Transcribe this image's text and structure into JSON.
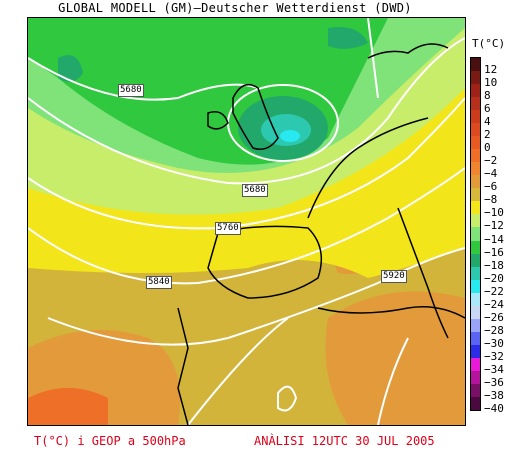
{
  "header": {
    "title": "GLOBAL MODELL (GM)—Deutscher Wetterdienst (DWD)"
  },
  "legend": {
    "title": "T(°C)",
    "levels": [
      {
        "label": "12",
        "color": "#4a0f0f"
      },
      {
        "label": "10",
        "color": "#7a1a14"
      },
      {
        "label": "8",
        "color": "#9e2218"
      },
      {
        "label": "6",
        "color": "#b7301b"
      },
      {
        "label": "4",
        "color": "#cc3b1c"
      },
      {
        "label": "2",
        "color": "#dd4a1f"
      },
      {
        "label": "0",
        "color": "#e85a22"
      },
      {
        "label": "−2",
        "color": "#ee6f27"
      },
      {
        "label": "−4",
        "color": "#f08530"
      },
      {
        "label": "−6",
        "color": "#e39a3a"
      },
      {
        "label": "−8",
        "color": "#d8b83a"
      },
      {
        "label": "−10",
        "color": "#f2e51a"
      },
      {
        "label": "−12",
        "color": "#c8ed6a"
      },
      {
        "label": "−14",
        "color": "#7fe37a"
      },
      {
        "label": "−16",
        "color": "#2fc83f"
      },
      {
        "label": "−18",
        "color": "#22a86a"
      },
      {
        "label": "−20",
        "color": "#2cc8b0"
      },
      {
        "label": "−22",
        "color": "#28e8f0"
      },
      {
        "label": "−24",
        "color": "#a8e8f8"
      },
      {
        "label": "−26",
        "color": "#c8d8f4"
      },
      {
        "label": "−28",
        "color": "#9aa4f8"
      },
      {
        "label": "−30",
        "color": "#5a64f4"
      },
      {
        "label": "−32",
        "color": "#2a2ce8"
      },
      {
        "label": "−34",
        "color": "#e81ad8"
      },
      {
        "label": "−36",
        "color": "#b4149c"
      },
      {
        "label": "−38",
        "color": "#7a1066"
      },
      {
        "label": "−40",
        "color": "#4a0a40"
      }
    ]
  },
  "isolines": {
    "labels": [
      "5680",
      "5680",
      "5760",
      "5840",
      "5920"
    ]
  },
  "footer": {
    "left": "T(°C) i GEOP a 500hPa",
    "right": "ANÀLISI 12UTC 30 JUL 2005"
  }
}
